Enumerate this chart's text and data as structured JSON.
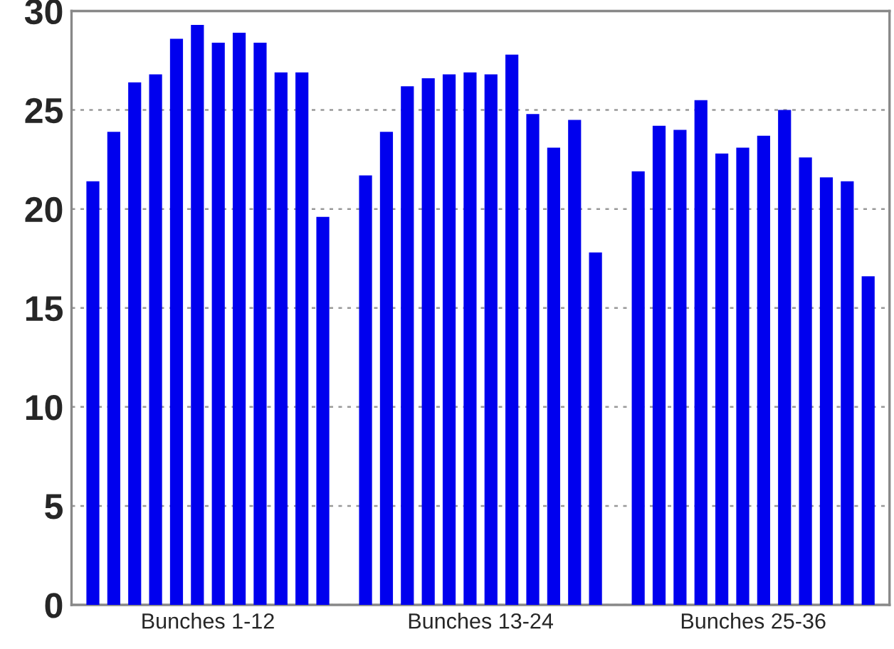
{
  "chart_data": {
    "type": "bar",
    "categories": [
      "Bunches 1-12",
      "Bunches 13-24",
      "Bunches 25-36"
    ],
    "series": [
      {
        "color": "#0000ee",
        "values": [
          21.4,
          21.7,
          21.9
        ]
      },
      {
        "color": "#0000ee",
        "values": [
          23.9,
          23.9,
          24.2
        ]
      },
      {
        "color": "#0000ee",
        "values": [
          26.4,
          26.2,
          24.0
        ]
      },
      {
        "color": "#0000ee",
        "values": [
          26.8,
          26.6,
          25.5
        ]
      },
      {
        "color": "#0000ee",
        "values": [
          28.6,
          26.8,
          22.8
        ]
      },
      {
        "color": "#0000ee",
        "values": [
          29.3,
          26.9,
          23.1
        ]
      },
      {
        "color": "#0000ee",
        "values": [
          28.4,
          26.8,
          23.7
        ]
      },
      {
        "color": "#0000ee",
        "values": [
          28.9,
          27.8,
          25.0
        ]
      },
      {
        "color": "#0000ee",
        "values": [
          28.4,
          24.8,
          22.6
        ]
      },
      {
        "color": "#0000ee",
        "values": [
          26.9,
          23.1,
          21.6
        ]
      },
      {
        "color": "#0000ee",
        "values": [
          26.9,
          24.5,
          21.4
        ]
      },
      {
        "color": "#0000ee",
        "values": [
          19.6,
          17.8,
          16.6
        ]
      }
    ],
    "ylim": [
      0,
      30
    ],
    "yticks": [
      0,
      5,
      10,
      15,
      20,
      25,
      30
    ],
    "grid": "y",
    "legend": false
  }
}
